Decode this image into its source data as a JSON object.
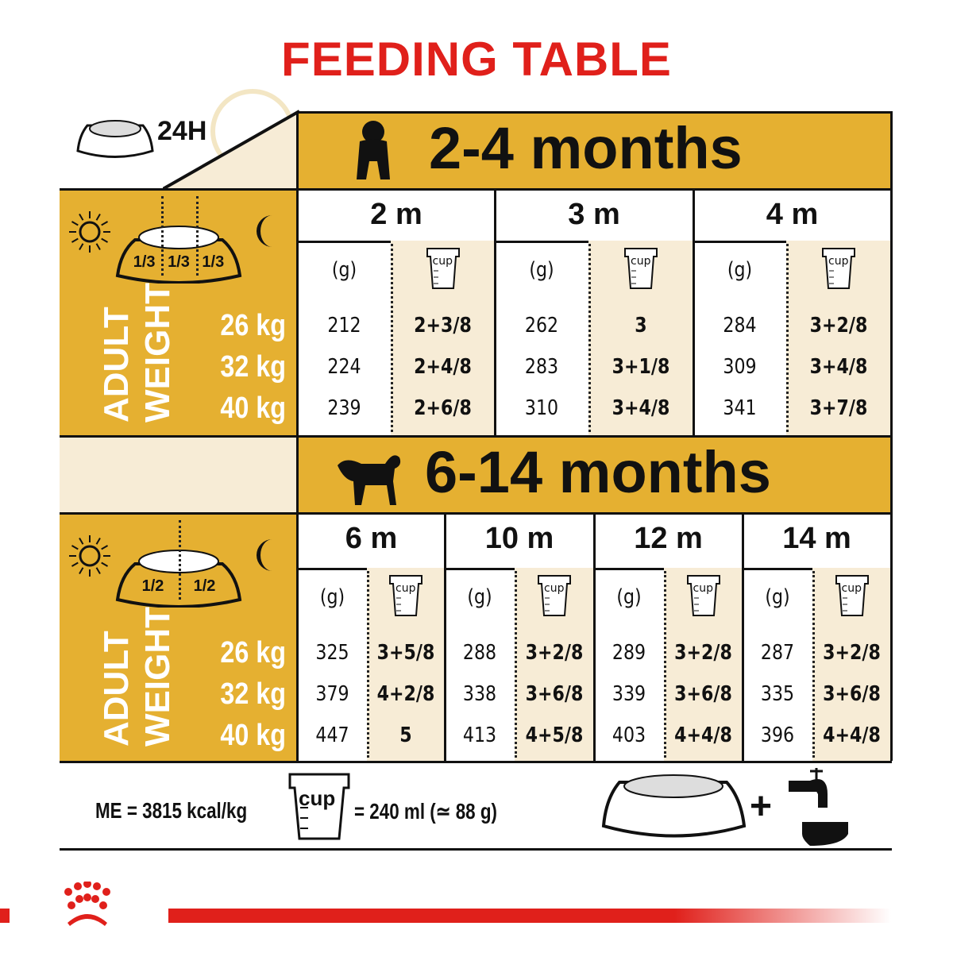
{
  "title": "FEEDING TABLE",
  "colors": {
    "brand_red": "#e0201b",
    "gold": "#e5b031",
    "beige": "#f7ecd6"
  },
  "intro": {
    "duration_label": "24H",
    "cup_label": "cup"
  },
  "sections": [
    {
      "band_label": "2-4 months",
      "band_icon": "puppy-silhouette-icon",
      "portions": [
        "1/3",
        "1/3",
        "1/3"
      ],
      "adult_label": "ADULT",
      "weight_label": "WEIGHT",
      "weights": [
        "26 kg",
        "32 kg",
        "40 kg"
      ],
      "columns": [
        {
          "age": "2 m",
          "grams_header": "(g)",
          "cup_label": "cup",
          "grams": [
            "212",
            "224",
            "239"
          ],
          "cups": [
            "2+3/8",
            "2+4/8",
            "2+6/8"
          ]
        },
        {
          "age": "3 m",
          "grams_header": "(g)",
          "cup_label": "cup",
          "grams": [
            "262",
            "283",
            "310"
          ],
          "cups": [
            "3",
            "3+1/8",
            "3+4/8"
          ]
        },
        {
          "age": "4 m",
          "grams_header": "(g)",
          "cup_label": "cup",
          "grams": [
            "284",
            "309",
            "341"
          ],
          "cups": [
            "3+2/8",
            "3+4/8",
            "3+7/8"
          ]
        }
      ]
    },
    {
      "band_label": "6-14 months",
      "band_icon": "adult-dog-silhouette-icon",
      "portions": [
        "1/2",
        "1/2"
      ],
      "adult_label": "ADULT",
      "weight_label": "WEIGHT",
      "weights": [
        "26 kg",
        "32 kg",
        "40 kg"
      ],
      "columns": [
        {
          "age": "6 m",
          "grams_header": "(g)",
          "cup_label": "cup",
          "grams": [
            "325",
            "379",
            "447"
          ],
          "cups": [
            "3+5/8",
            "4+2/8",
            "5"
          ]
        },
        {
          "age": "10 m",
          "grams_header": "(g)",
          "cup_label": "cup",
          "grams": [
            "288",
            "338",
            "413"
          ],
          "cups": [
            "3+2/8",
            "3+6/8",
            "4+5/8"
          ]
        },
        {
          "age": "12 m",
          "grams_header": "(g)",
          "cup_label": "cup",
          "grams": [
            "289",
            "339",
            "403"
          ],
          "cups": [
            "3+2/8",
            "3+6/8",
            "4+4/8"
          ]
        },
        {
          "age": "14 m",
          "grams_header": "(g)",
          "cup_label": "cup",
          "grams": [
            "287",
            "335",
            "396"
          ],
          "cups": [
            "3+2/8",
            "3+6/8",
            "4+4/8"
          ]
        }
      ]
    }
  ],
  "footer": {
    "energy": "ME = 3815 kcal/kg",
    "cup_label": "cup",
    "cup_equivalence": "= 240 ml (≃ 88 g)",
    "plus": "+"
  }
}
